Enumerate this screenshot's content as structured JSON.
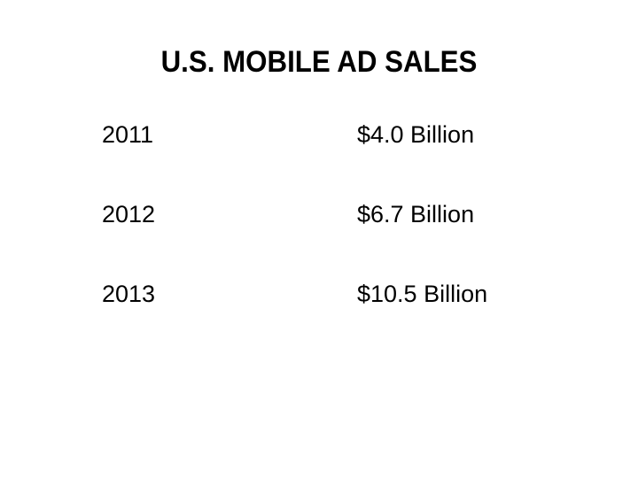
{
  "header": {
    "title": "U.S. MOBILE AD SALES"
  },
  "table": {
    "rows": [
      [
        "2011",
        "$4.0 Billion"
      ],
      [
        "2012",
        "$6.7 Billion"
      ],
      [
        "2013",
        "$10.5 Billion"
      ]
    ]
  }
}
